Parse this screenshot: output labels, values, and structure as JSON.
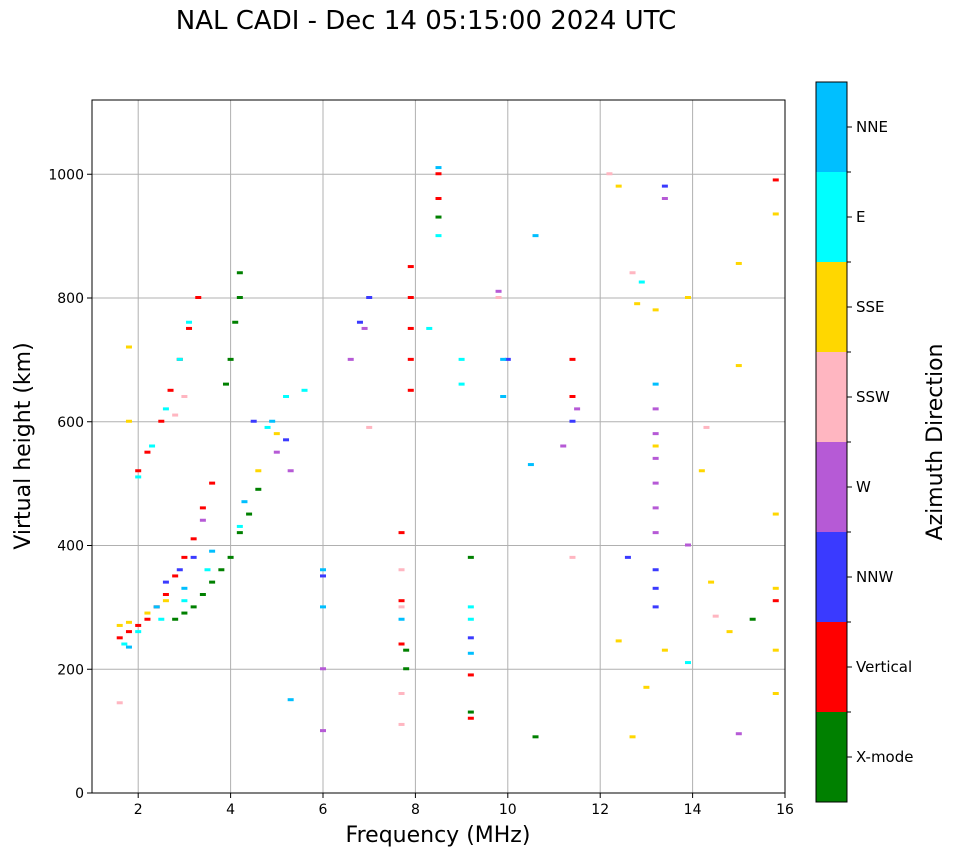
{
  "title": "NAL CADI - Dec 14 05:15:00 2024 UTC",
  "chart_data": {
    "type": "scatter",
    "title": "NAL CADI - Dec 14 05:15:00 2024 UTC",
    "xlabel": "Frequency (MHz)",
    "ylabel": "Virtual height (km)",
    "xlim": [
      1,
      16
    ],
    "ylim": [
      0,
      1120
    ],
    "xticks": [
      2,
      4,
      6,
      8,
      10,
      12,
      14,
      16
    ],
    "xtick_labels": [
      "2",
      "4",
      "6",
      "8",
      "10",
      "12",
      "14",
      "16"
    ],
    "yticks": [
      0,
      200,
      400,
      600,
      800,
      1000
    ],
    "ytick_labels": [
      "0",
      "200",
      "400",
      "600",
      "800",
      "1000"
    ],
    "grid": true,
    "colorbar": {
      "label": "Azimuth Direction",
      "categories": [
        "X-mode",
        "Vertical",
        "NNW",
        "W",
        "SSW",
        "SSE",
        "E",
        "NNE"
      ],
      "colors": [
        "#008000",
        "#ff0000",
        "#3a3aff",
        "#b65ad6",
        "#ffb6c1",
        "#ffd700",
        "#00ffff",
        "#00bfff"
      ]
    },
    "series": [
      {
        "name": "X-mode",
        "points": [
          [
            2.8,
            280
          ],
          [
            3.0,
            290
          ],
          [
            3.2,
            300
          ],
          [
            3.4,
            320
          ],
          [
            3.6,
            340
          ],
          [
            3.8,
            360
          ],
          [
            4.0,
            380
          ],
          [
            4.2,
            420
          ],
          [
            4.4,
            450
          ],
          [
            4.6,
            490
          ],
          [
            3.9,
            660
          ],
          [
            4.0,
            700
          ],
          [
            4.1,
            760
          ],
          [
            4.2,
            800
          ],
          [
            4.2,
            840
          ],
          [
            7.8,
            200
          ],
          [
            7.8,
            230
          ],
          [
            9.2,
            130
          ],
          [
            9.2,
            380
          ],
          [
            15.3,
            280
          ],
          [
            8.5,
            930
          ],
          [
            10.6,
            90
          ]
        ]
      },
      {
        "name": "Vertical",
        "points": [
          [
            1.6,
            250
          ],
          [
            1.8,
            260
          ],
          [
            2.0,
            270
          ],
          [
            2.2,
            280
          ],
          [
            2.4,
            300
          ],
          [
            2.6,
            320
          ],
          [
            2.8,
            350
          ],
          [
            3.0,
            380
          ],
          [
            3.2,
            410
          ],
          [
            3.4,
            460
          ],
          [
            3.6,
            500
          ],
          [
            2.0,
            520
          ],
          [
            2.2,
            550
          ],
          [
            2.5,
            600
          ],
          [
            2.7,
            650
          ],
          [
            2.9,
            700
          ],
          [
            3.1,
            750
          ],
          [
            3.3,
            800
          ],
          [
            7.7,
            420
          ],
          [
            7.7,
            310
          ],
          [
            7.7,
            240
          ],
          [
            7.9,
            650
          ],
          [
            7.9,
            700
          ],
          [
            7.9,
            750
          ],
          [
            7.9,
            800
          ],
          [
            7.9,
            850
          ],
          [
            8.5,
            960
          ],
          [
            8.5,
            1000
          ],
          [
            9.2,
            190
          ],
          [
            9.2,
            120
          ],
          [
            15.8,
            990
          ],
          [
            15.8,
            310
          ],
          [
            11.4,
            640
          ],
          [
            11.4,
            700
          ]
        ]
      },
      {
        "name": "NNW",
        "points": [
          [
            2.6,
            340
          ],
          [
            2.9,
            360
          ],
          [
            3.2,
            380
          ],
          [
            4.5,
            600
          ],
          [
            5.2,
            570
          ],
          [
            6.0,
            350
          ],
          [
            6.8,
            760
          ],
          [
            7.0,
            800
          ],
          [
            9.2,
            250
          ],
          [
            10.0,
            700
          ],
          [
            12.6,
            380
          ],
          [
            13.2,
            300
          ],
          [
            13.2,
            330
          ],
          [
            13.2,
            360
          ],
          [
            13.4,
            980
          ],
          [
            11.4,
            600
          ]
        ]
      },
      {
        "name": "W",
        "points": [
          [
            3.4,
            440
          ],
          [
            5.0,
            550
          ],
          [
            5.3,
            520
          ],
          [
            6.0,
            200
          ],
          [
            6.0,
            100
          ],
          [
            6.6,
            700
          ],
          [
            6.9,
            750
          ],
          [
            9.8,
            810
          ],
          [
            11.2,
            560
          ],
          [
            11.5,
            620
          ],
          [
            13.2,
            420
          ],
          [
            13.2,
            460
          ],
          [
            13.2,
            500
          ],
          [
            13.2,
            540
          ],
          [
            13.2,
            580
          ],
          [
            13.2,
            620
          ],
          [
            13.4,
            960
          ],
          [
            13.9,
            400
          ],
          [
            15.0,
            95
          ]
        ]
      },
      {
        "name": "SSW",
        "points": [
          [
            1.6,
            145
          ],
          [
            2.8,
            610
          ],
          [
            3.0,
            640
          ],
          [
            7.7,
            360
          ],
          [
            7.7,
            300
          ],
          [
            7.7,
            160
          ],
          [
            7.7,
            110
          ],
          [
            7.0,
            590
          ],
          [
            9.8,
            800
          ],
          [
            11.4,
            380
          ],
          [
            12.2,
            1000
          ],
          [
            12.7,
            840
          ],
          [
            14.3,
            590
          ],
          [
            14.5,
            285
          ]
        ]
      },
      {
        "name": "SSE",
        "points": [
          [
            1.6,
            270
          ],
          [
            1.8,
            275
          ],
          [
            2.2,
            290
          ],
          [
            2.6,
            310
          ],
          [
            4.6,
            520
          ],
          [
            5.0,
            580
          ],
          [
            1.8,
            720
          ],
          [
            1.8,
            600
          ],
          [
            12.4,
            980
          ],
          [
            12.8,
            790
          ],
          [
            13.2,
            780
          ],
          [
            13.2,
            560
          ],
          [
            13.4,
            230
          ],
          [
            13.9,
            800
          ],
          [
            14.2,
            520
          ],
          [
            14.4,
            340
          ],
          [
            14.8,
            260
          ],
          [
            15.0,
            855
          ],
          [
            15.0,
            690
          ],
          [
            15.8,
            935
          ],
          [
            15.8,
            450
          ],
          [
            15.8,
            330
          ],
          [
            15.8,
            230
          ],
          [
            15.8,
            160
          ],
          [
            12.4,
            245
          ],
          [
            13.0,
            170
          ],
          [
            12.7,
            90
          ]
        ]
      },
      {
        "name": "E",
        "points": [
          [
            1.7,
            240
          ],
          [
            2.0,
            260
          ],
          [
            2.5,
            280
          ],
          [
            3.0,
            310
          ],
          [
            3.5,
            360
          ],
          [
            4.2,
            430
          ],
          [
            4.8,
            590
          ],
          [
            5.2,
            640
          ],
          [
            5.6,
            650
          ],
          [
            2.0,
            510
          ],
          [
            2.3,
            560
          ],
          [
            2.6,
            620
          ],
          [
            2.9,
            700
          ],
          [
            3.1,
            760
          ],
          [
            8.5,
            900
          ],
          [
            8.3,
            750
          ],
          [
            9.2,
            300
          ],
          [
            9.2,
            280
          ],
          [
            9.0,
            700
          ],
          [
            9.0,
            660
          ],
          [
            12.9,
            825
          ],
          [
            13.9,
            210
          ]
        ]
      },
      {
        "name": "NNE",
        "points": [
          [
            1.8,
            235
          ],
          [
            2.4,
            300
          ],
          [
            3.0,
            330
          ],
          [
            3.6,
            390
          ],
          [
            4.3,
            470
          ],
          [
            4.9,
            600
          ],
          [
            6.0,
            300
          ],
          [
            6.0,
            360
          ],
          [
            7.7,
            280
          ],
          [
            8.5,
            1010
          ],
          [
            9.2,
            225
          ],
          [
            9.9,
            640
          ],
          [
            9.9,
            700
          ],
          [
            10.5,
            530
          ],
          [
            10.6,
            900
          ],
          [
            13.2,
            660
          ],
          [
            5.3,
            150
          ]
        ]
      }
    ]
  }
}
